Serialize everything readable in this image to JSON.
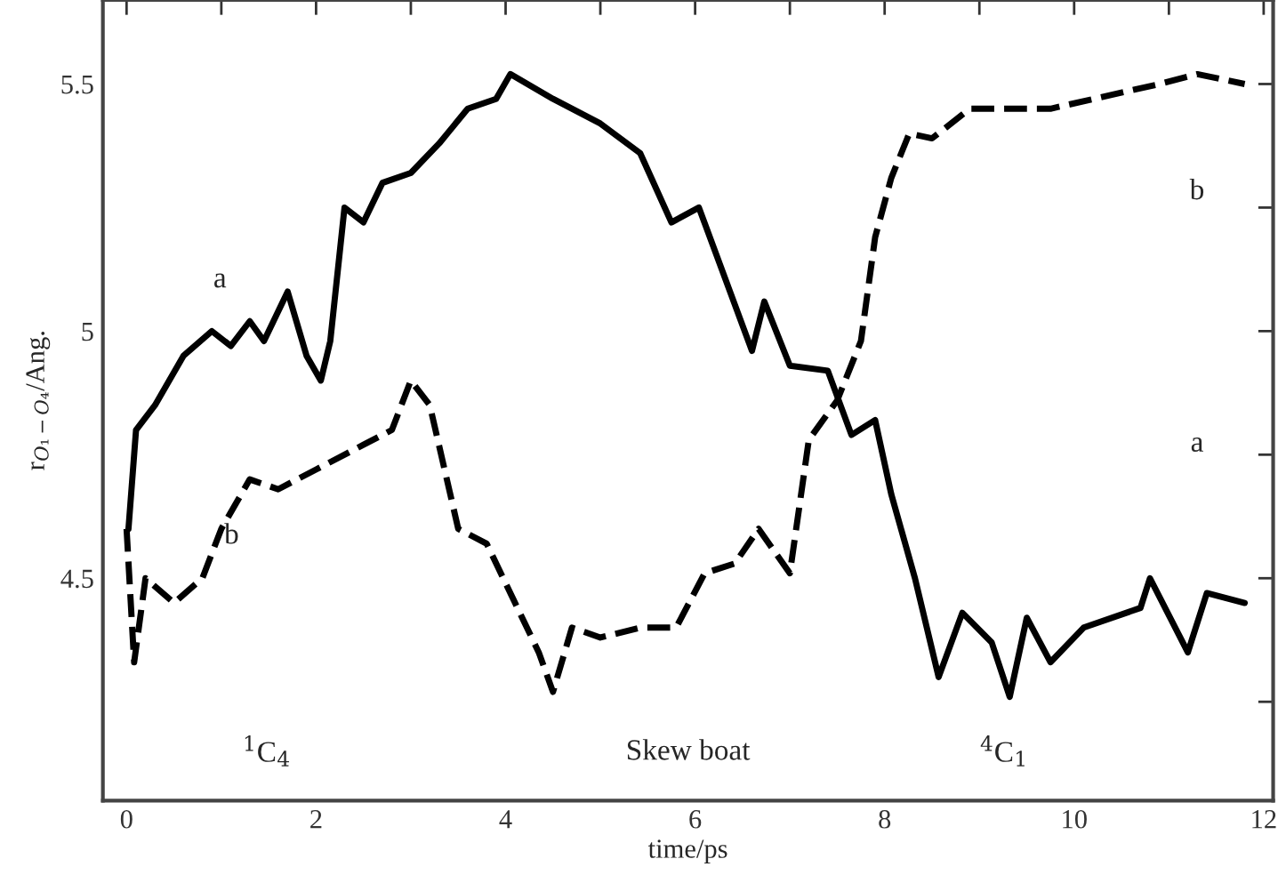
{
  "chart_data": {
    "type": "line",
    "xlabel": "time/ps",
    "ylabel": "r$_{O₁−O₄}$/Ang.",
    "xlim": [
      -0.25,
      12.1
    ],
    "ylim": [
      4.05,
      5.67
    ],
    "xticks": [
      0,
      {
        "value": 1,
        "label": null
      },
      2,
      {
        "value": 3,
        "label": null
      },
      4,
      {
        "value": 5,
        "label": null
      },
      6,
      {
        "value": 7,
        "label": null
      },
      8,
      {
        "value": 9,
        "label": null
      },
      10,
      {
        "value": 11,
        "label": null
      },
      12
    ],
    "yticks": [
      {
        "value": 4.25,
        "label": null
      },
      4.5,
      {
        "value": 4.75,
        "label": null
      },
      5,
      {
        "value": 5.25,
        "label": null
      },
      5.5
    ],
    "grid": false,
    "legend": false,
    "marker": "none",
    "line_style": "solid",
    "series": [
      {
        "color": "#000000",
        "x": [
          0.02,
          0.1,
          0.3,
          0.6,
          0.9,
          1.1,
          1.3,
          1.45,
          1.7,
          1.9,
          2.05,
          2.15,
          2.3,
          2.5,
          2.7,
          3.0,
          3.3,
          3.6,
          3.9,
          4.05,
          4.5,
          5.0,
          5.42,
          5.75,
          6.04,
          6.6,
          6.73,
          7.0,
          7.4,
          7.65,
          7.9,
          8.07,
          8.32,
          8.57,
          8.82,
          9.13,
          9.32,
          9.5,
          9.75,
          10.1,
          10.7,
          10.8,
          11.2,
          11.4,
          11.8
        ],
        "values": [
          4.6,
          4.8,
          4.85,
          4.95,
          5.0,
          4.97,
          5.02,
          4.98,
          5.08,
          4.95,
          4.9,
          4.98,
          5.25,
          5.22,
          5.3,
          5.32,
          5.38,
          5.45,
          5.47,
          5.52,
          5.47,
          5.42,
          5.36,
          5.22,
          5.25,
          4.96,
          5.06,
          4.93,
          4.92,
          4.79,
          4.82,
          4.67,
          4.5,
          4.3,
          4.43,
          4.37,
          4.26,
          4.42,
          4.33,
          4.4,
          4.44,
          4.5,
          4.35,
          4.47,
          4.45
        ]
      },
      {
        "color": "#000000",
        "line_style": "dashed",
        "x": [
          0.0,
          0.08,
          0.2,
          0.5,
          0.8,
          1.0,
          1.3,
          1.6,
          2.0,
          2.5,
          2.8,
          3.0,
          3.2,
          3.5,
          3.8,
          4.1,
          4.35,
          4.5,
          4.7,
          5.0,
          5.42,
          5.8,
          6.1,
          6.42,
          6.67,
          7.0,
          7.2,
          7.5,
          7.75,
          7.9,
          8.07,
          8.26,
          8.5,
          8.9,
          9.75,
          10.9,
          11.3,
          11.8
        ],
        "values": [
          4.6,
          4.33,
          4.5,
          4.45,
          4.5,
          4.6,
          4.7,
          4.68,
          4.72,
          4.77,
          4.8,
          4.9,
          4.85,
          4.6,
          4.57,
          4.45,
          4.35,
          4.27,
          4.4,
          4.38,
          4.4,
          4.4,
          4.51,
          4.53,
          4.6,
          4.51,
          4.78,
          4.86,
          4.98,
          5.19,
          5.31,
          5.4,
          5.39,
          5.45,
          5.45,
          5.5,
          5.52,
          5.5
        ]
      }
    ],
    "annotations": [
      "a",
      "b",
      "b",
      "a",
      "$^{1}$C$_{4}$",
      "Skew boat",
      "$^{4}$C$_{1}$"
    ]
  }
}
